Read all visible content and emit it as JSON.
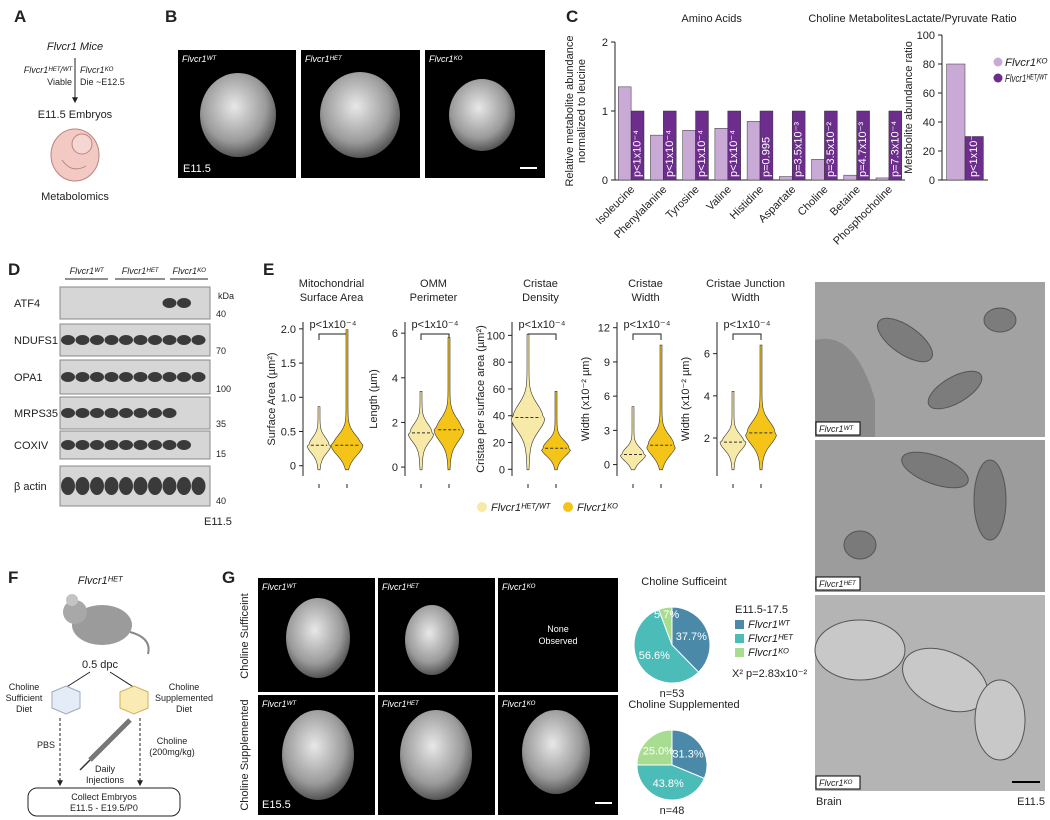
{
  "figure": {
    "A": {
      "letter": "A",
      "title": "Flvcr1 Mice",
      "left_genotype": "Flvcr1ᴴᴱᵀ/ᵂᵀ",
      "left_note": "Viable",
      "right_genotype": "Flvcr1ᴷᴼ",
      "right_note": "Die ~E12.5",
      "stage": "E11.5 Embryos",
      "assay": "Metabolomics"
    },
    "B": {
      "letter": "B",
      "images": [
        "Flvcr1ᵂᵀ",
        "Flvcr1ᴴᴱᵀ",
        "Flvcr1ᴷᴼ"
      ],
      "stage": "E11.5"
    },
    "C": {
      "letter": "C"
    },
    "D": {
      "letter": "D",
      "groups": [
        "Flvcr1ᵂᵀ",
        "Flvcr1ᴴᴱᵀ",
        "Flvcr1ᴷᴼ"
      ],
      "kda": "kDa",
      "proteins": [
        {
          "name": "ATF4",
          "marker": 40
        },
        {
          "name": "NDUFS1",
          "marker": 70
        },
        {
          "name": "OPA1",
          "marker": 100
        },
        {
          "name": "MRPS35",
          "marker": 35
        },
        {
          "name": "COXIV",
          "marker": 15
        },
        {
          "name": "β actin",
          "marker": 40
        }
      ],
      "stage": "E11.5"
    },
    "E": {
      "letter": "E",
      "legend": [
        {
          "name": "Flvcr1ᴴᴱᵀ/ᵂᵀ",
          "color": "#f7e9a8"
        },
        {
          "name": "Flvcr1ᴷᴼ",
          "color": "#f4c419"
        }
      ]
    },
    "EM": {
      "images": [
        "Flvcr1ᵂᵀ",
        "Flvcr1ᴴᴱᵀ",
        "Flvcr1ᴷᴼ"
      ],
      "tissue": "Brain",
      "stage": "E11.5"
    },
    "F": {
      "letter": "F",
      "mouse": "Flvcr1ᴴᴱᵀ",
      "time": "0.5 dpc",
      "left_diet": [
        "Choline",
        "Sufficient",
        "Diet"
      ],
      "right_diet": [
        "Choline",
        "Supplemented",
        "Diet"
      ],
      "left_injection": "PBS",
      "right_injection": [
        "Choline",
        "(200mg/kg)"
      ],
      "injections": [
        "Daily",
        "Injections"
      ],
      "collect": [
        "Collect Embryos",
        "E11.5 - E19.5/P0"
      ]
    },
    "G": {
      "letter": "G",
      "rows": [
        "Choline Sufficeint",
        "Choline Supplemented"
      ],
      "images": [
        [
          "Flvcr1ᵂᵀ",
          "Flvcr1ᴴᴱᵀ",
          "Flvcr1ᴷᴼ"
        ],
        [
          "Flvcr1ᵂᵀ",
          "Flvcr1ᴴᴱᵀ",
          "Flvcr1ᴷᴼ"
        ]
      ],
      "none": [
        "None",
        "Observed"
      ],
      "stage": "E15.5"
    }
  },
  "chart_data": [
    {
      "type": "bar",
      "ylabel": [
        "Relative metabolite abundance",
        "normalized to leucine"
      ],
      "group_labels": [
        "Amino Acids",
        "Choline Metabolites"
      ],
      "categories": [
        "Isoleucine",
        "Phenylalanine",
        "Tyrosine",
        "Valine",
        "Histidine",
        "Aspartate",
        "Choline",
        "Betaine",
        "Phosphocholine"
      ],
      "series": [
        {
          "color": "#c9a9d6",
          "values": [
            1.35,
            0.65,
            0.72,
            0.75,
            0.85,
            0.05,
            0.3,
            0.07,
            0.03
          ]
        },
        {
          "color": "#6c2d8c",
          "values": [
            1,
            1,
            1,
            1,
            1,
            1,
            1,
            1,
            1
          ]
        }
      ],
      "annotations": [
        "p<1x10⁻⁴",
        "p<1x10⁻⁴",
        "p<1x10⁻⁴",
        "p<1x10⁻⁴",
        "p=0.995",
        "p=3.5x10⁻³",
        "p=3.5x10⁻²",
        "p=4.7x10⁻³",
        "p=7.3x10⁻⁴"
      ],
      "ylim": [
        0,
        2
      ],
      "yticks": [
        0,
        1,
        2
      ]
    },
    {
      "type": "bar",
      "title": "Lactate/Pyruvate Ratio",
      "ylabel": "Metabolite abundance ratio",
      "categories": [
        null
      ],
      "series": [
        {
          "name": "Flvcr1ᴷᴼ",
          "color": "#c9a9d6",
          "values": [
            80
          ]
        },
        {
          "name": "Flvcr1ᴴᴱᵀ/ᵂᵀ",
          "color": "#6c2d8c",
          "values": [
            30
          ]
        }
      ],
      "annotations": [
        "p<1x10⁻⁴"
      ],
      "ylim": [
        0,
        100
      ],
      "yticks": [
        0,
        20,
        40,
        60,
        80,
        100
      ],
      "legend": "right"
    },
    {
      "type": "violin",
      "title": [
        "Mitochondrial",
        "Surface Area"
      ],
      "ylabel": "Surface Area (µm²)",
      "annotation": "p<1x10⁻⁴",
      "ylim": [
        -0.15,
        2.1
      ],
      "yticks": [
        0,
        0.5,
        {
          "value": 1,
          "label": "1.0"
        },
        1.5,
        {
          "value": 2,
          "label": "2.0"
        }
      ]
    },
    {
      "type": "violin",
      "title": [
        "OMM",
        "Perimeter"
      ],
      "ylabel": "Length (µm)",
      "annotation": "p<1x10⁻⁴",
      "ylim": [
        -0.4,
        6.5
      ],
      "yticks": [
        0,
        2,
        4,
        6
      ]
    },
    {
      "type": "violin",
      "title": [
        "Cristae",
        "Density"
      ],
      "ylabel": "Cristae per surface area (µm²)",
      "annotation": "p<1x10⁻⁴",
      "ylim": [
        -5,
        110
      ],
      "yticks": [
        0,
        20,
        40,
        60,
        80,
        100
      ]
    },
    {
      "type": "violin",
      "title": [
        "Cristae",
        "Width"
      ],
      "ylabel": "Width (x10⁻² µm)",
      "annotation": "p<1x10⁻⁴",
      "ylim": [
        -1,
        12.5
      ],
      "yticks": [
        0,
        3,
        6,
        9,
        12
      ]
    },
    {
      "type": "violin",
      "title": [
        "Cristae Junction",
        "Width"
      ],
      "ylabel": "Width (x10⁻² µm)",
      "annotation": "p<1x10⁻⁴",
      "ylim": [
        0.2,
        7.5
      ],
      "yticks": [
        2,
        4,
        6
      ]
    },
    {
      "type": "pie",
      "title": "Choline Sufficeint",
      "legend_title": "E11.5-17.5",
      "categories": [
        "Flvcr1ᵂᵀ",
        "Flvcr1ᴴᴱᵀ",
        "Flvcr1ᴷᴼ"
      ],
      "colors": [
        "#4a89a8",
        "#4cbcb8",
        "#a8dc90"
      ],
      "values": [
        37.7,
        56.6,
        5.7
      ],
      "value_labels": [
        "37.7%",
        "56.6%",
        "5.7%"
      ],
      "note": "n=53",
      "annotation": "X² p=2.83x10⁻²"
    },
    {
      "type": "pie",
      "title": "Choline Supplemented",
      "colors": [
        "#4a89a8",
        "#4cbcb8",
        "#a8dc90"
      ],
      "values": [
        31.3,
        43.8,
        25.0
      ],
      "value_labels": [
        "31.3%",
        "43.8%",
        "25.0%"
      ],
      "note": "n=48"
    }
  ]
}
